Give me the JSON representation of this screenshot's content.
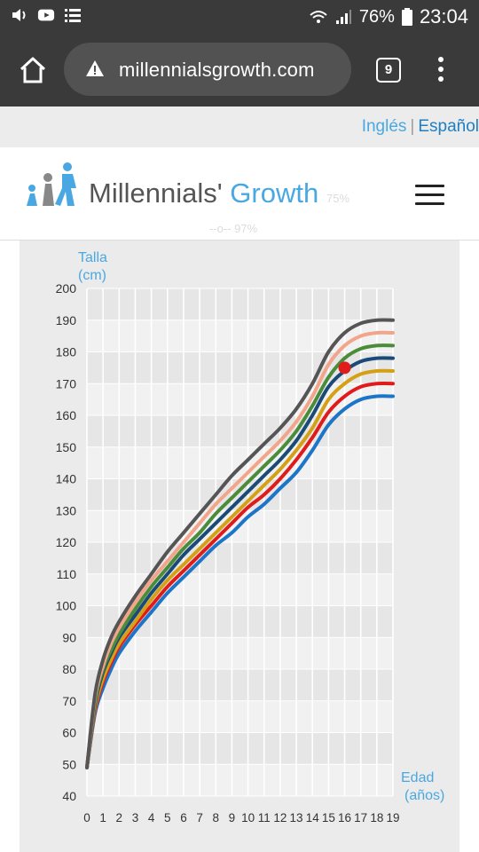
{
  "status_bar": {
    "battery": "76%",
    "time": "23:04",
    "icons": [
      "volume-icon",
      "youtube-icon",
      "notification-list-icon",
      "wifi-icon",
      "signal-icon",
      "battery-icon"
    ]
  },
  "browser": {
    "url": "millennialsgrowth.com",
    "tab_count": "9",
    "icons": [
      "home-icon",
      "warning-icon",
      "overflow-menu-icon"
    ]
  },
  "language": {
    "english": "Inglés",
    "separator": "|",
    "spanish": "Español"
  },
  "header": {
    "brand_main": "Millennials' ",
    "brand_accent": "Growth",
    "ghost_legend_a": "--o-- 97%",
    "ghost_legend_b": "75%"
  },
  "colors": {
    "accent": "#49a8e2",
    "status_bar": "#3a3a3a"
  },
  "chart_data": {
    "type": "line",
    "ylabel": [
      "Talla",
      "(cm)"
    ],
    "xlabel": [
      "Edad",
      "(años)"
    ],
    "ylim": [
      40,
      200
    ],
    "xlim": [
      0,
      19
    ],
    "yticks": [
      40,
      50,
      60,
      70,
      80,
      90,
      100,
      110,
      120,
      130,
      140,
      150,
      160,
      170,
      180,
      190,
      200
    ],
    "xticks": [
      0,
      1,
      2,
      3,
      4,
      5,
      6,
      7,
      8,
      9,
      10,
      11,
      12,
      13,
      14,
      15,
      16,
      17,
      18,
      19
    ],
    "x": [
      0,
      0.5,
      1,
      1.5,
      2,
      3,
      4,
      5,
      6,
      7,
      8,
      9,
      10,
      11,
      12,
      13,
      14,
      15,
      16,
      17,
      18,
      19
    ],
    "series": [
      {
        "color": "#555555",
        "values": [
          49,
          72,
          83,
          90,
          95,
          103,
          110,
          117,
          123,
          129,
          135,
          141,
          146,
          151,
          156,
          162,
          170,
          180,
          186,
          189,
          190,
          190
        ]
      },
      {
        "color": "#f2a58a",
        "values": [
          49,
          71,
          81,
          88,
          93,
          101,
          108,
          114,
          120,
          126,
          132,
          137,
          142,
          147,
          152,
          158,
          166,
          176,
          182,
          185,
          186,
          186
        ]
      },
      {
        "color": "#4a8c3a",
        "values": [
          49,
          70,
          80,
          86,
          91,
          99,
          106,
          112,
          118,
          123,
          129,
          134,
          139,
          144,
          149,
          155,
          163,
          172,
          178,
          181,
          182,
          182
        ]
      },
      {
        "color": "#1a4b78",
        "values": [
          49,
          69,
          79,
          85,
          90,
          97,
          104,
          110,
          116,
          121,
          126,
          131,
          136,
          141,
          146,
          152,
          160,
          169,
          174,
          177,
          178,
          178
        ]
      },
      {
        "color": "#d4a016",
        "values": [
          49,
          68,
          77,
          83,
          88,
          95,
          102,
          108,
          113,
          118,
          123,
          128,
          133,
          138,
          143,
          149,
          156,
          165,
          170,
          173,
          174,
          174
        ]
      },
      {
        "color": "#e01b1b",
        "values": [
          49,
          67,
          76,
          82,
          87,
          94,
          100,
          106,
          111,
          116,
          121,
          126,
          131,
          135,
          140,
          146,
          153,
          161,
          166,
          169,
          170,
          170
        ]
      },
      {
        "color": "#1d75c8",
        "values": [
          49,
          66,
          74,
          80,
          85,
          92,
          98,
          104,
          109,
          114,
          119,
          123,
          128,
          132,
          137,
          142,
          149,
          157,
          162,
          165,
          166,
          166
        ]
      }
    ],
    "marker": {
      "x": 16,
      "y": 175,
      "color": "#e01b1b"
    }
  }
}
